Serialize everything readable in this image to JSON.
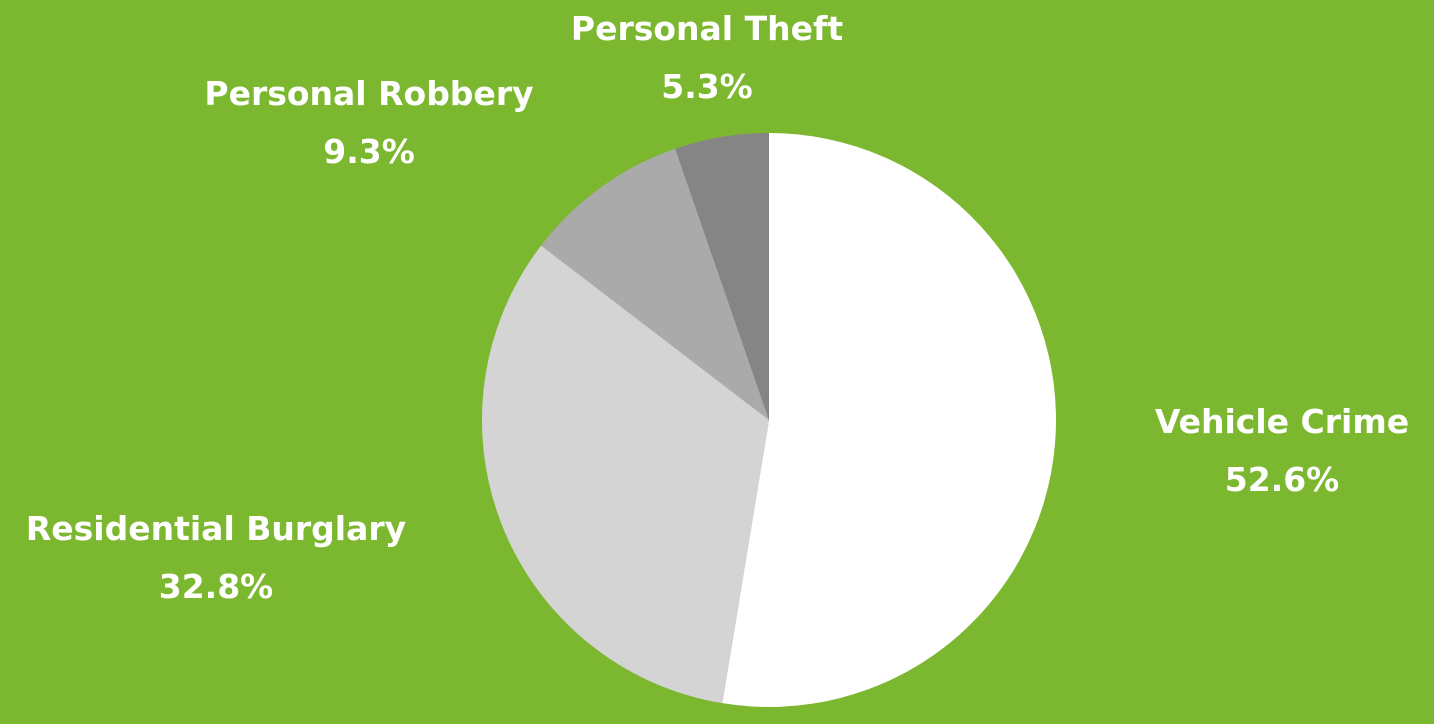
{
  "background_color": "#7cb82f",
  "chart_data": {
    "type": "pie",
    "title": "",
    "start_angle_deg": 0,
    "direction": "clockwise",
    "slices": [
      {
        "label": "Vehicle Crime",
        "value": 52.6,
        "value_text": "52.6%",
        "color": "#ffffff"
      },
      {
        "label": "Residential Burglary",
        "value": 32.8,
        "value_text": "32.8%",
        "color": "#d4d4d4"
      },
      {
        "label": "Personal Robbery",
        "value": 9.3,
        "value_text": "9.3%",
        "color": "#aaaaaa"
      },
      {
        "label": "Personal Theft",
        "value": 5.3,
        "value_text": "5.3%",
        "color": "#858585"
      }
    ]
  }
}
